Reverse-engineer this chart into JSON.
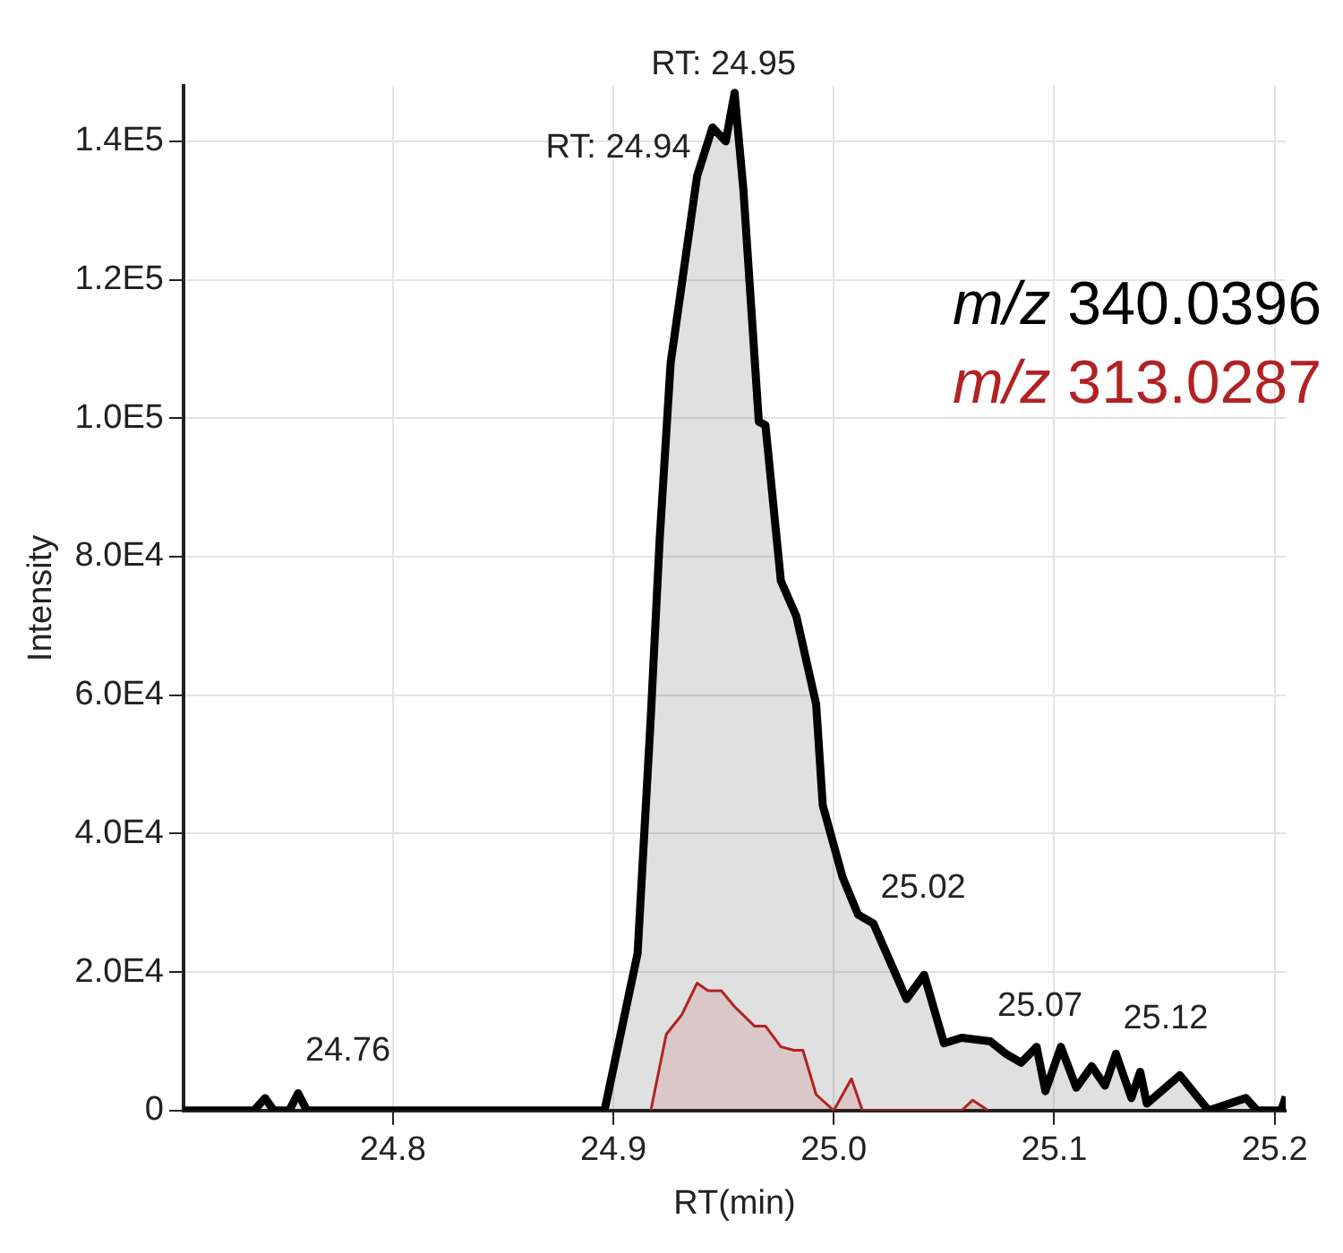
{
  "chart_data": {
    "type": "area",
    "xlabel": "RT(min)",
    "ylabel": "Intensity",
    "xlim": [
      24.705,
      25.205
    ],
    "xticks": [
      24.8,
      24.9,
      {
        "value": 25,
        "label": "25.0"
      },
      25.1,
      25.2
    ],
    "ylim": [
      0,
      148000
    ],
    "yticks": [
      0,
      {
        "value": 20000,
        "label": "2.0E4"
      },
      {
        "value": 40000,
        "label": "4.0E4"
      },
      {
        "value": 60000,
        "label": "6.0E4"
      },
      {
        "value": 80000,
        "label": "8.0E4"
      },
      {
        "value": 100000,
        "label": "1.0E5"
      },
      {
        "value": 120000,
        "label": "1.2E5"
      },
      {
        "value": 140000,
        "label": "1.4E5"
      }
    ],
    "grid": true,
    "legend": "top right",
    "series": [
      {
        "name": "m/z 340.0396",
        "color": "#000000",
        "x": [
          24.705,
          24.737,
          24.742,
          24.746,
          24.753,
          24.757,
          24.761,
          24.896,
          24.911,
          24.917,
          24.921,
          24.926,
          24.938,
          24.945,
          24.951,
          24.955,
          24.959,
          24.966,
          24.969,
          24.976,
          24.983,
          24.992,
          24.995,
          25.004,
          25.011,
          25.018,
          25.025,
          25.033,
          25.041,
          25.05,
          25.058,
          25.071,
          25.078,
          25.085,
          25.092,
          25.096,
          25.103,
          25.11,
          25.117,
          25.123,
          25.128,
          25.135,
          25.139,
          25.142,
          25.157,
          25.17,
          25.187,
          25.192,
          25.203,
          25.205
        ],
        "values": [
          0,
          0,
          1800,
          0,
          0,
          2500,
          0,
          0,
          22700,
          56900,
          82400,
          108000,
          135000,
          142000,
          140000,
          147000,
          133000,
          99500,
          99000,
          76500,
          71400,
          58700,
          44100,
          33700,
          28300,
          27000,
          21900,
          16100,
          19600,
          9700,
          10500,
          10000,
          8200,
          6900,
          9200,
          2800,
          9200,
          3300,
          6400,
          3600,
          8200,
          1800,
          5600,
          1000,
          5100,
          0,
          1800,
          0,
          0,
          2000
        ]
      },
      {
        "name": "m/z 313.0287",
        "color": "#b22222",
        "x": [
          24.917,
          24.924,
          24.931,
          24.938,
          24.943,
          24.949,
          24.955,
          24.964,
          24.969,
          24.976,
          24.982,
          24.986,
          24.992,
          25.0,
          25.008,
          25.013,
          25.058,
          25.063,
          25.07
        ],
        "values": [
          0,
          11000,
          13800,
          18400,
          17300,
          17300,
          15000,
          12200,
          12200,
          9200,
          8700,
          8700,
          2300,
          0,
          4600,
          0,
          0,
          1500,
          0
        ]
      }
    ],
    "annotations": [
      {
        "text": "RT: 24.94",
        "x": 24.94,
        "y": 139000
      },
      {
        "text": "RT: 24.95",
        "x": 24.95,
        "y": 147000
      },
      {
        "text": "24.76",
        "x": 24.757,
        "y": 3500
      },
      {
        "text": "25.02",
        "x": 25.018,
        "y": 27000
      },
      {
        "text": "25.07",
        "x": 25.071,
        "y": 10000
      },
      {
        "text": "25.12",
        "x": 25.128,
        "y": 8200
      }
    ]
  }
}
